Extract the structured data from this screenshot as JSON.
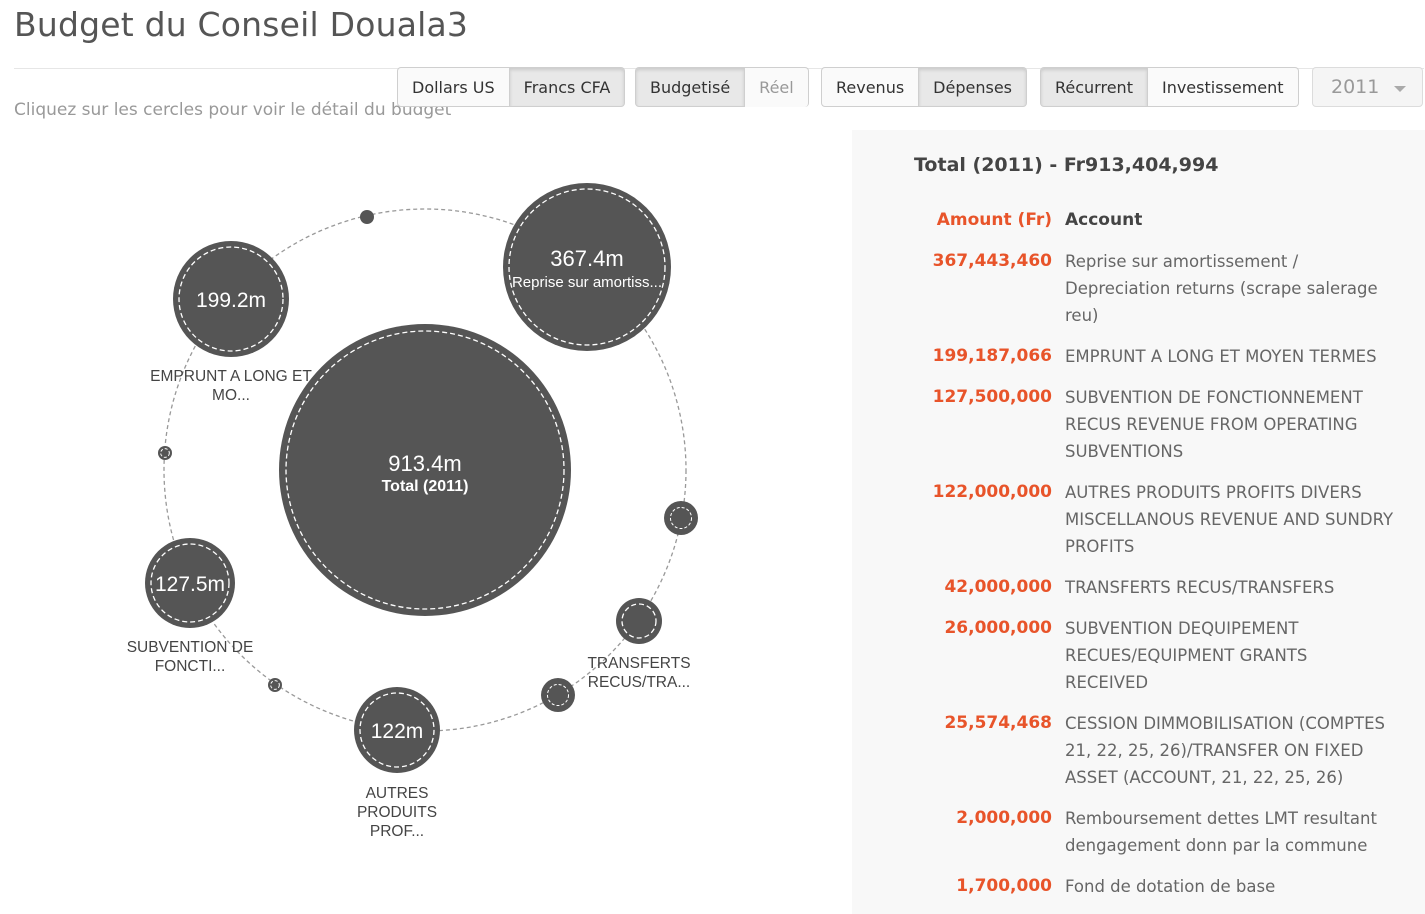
{
  "page": {
    "title": "Budget du Conseil Douala3",
    "subtitle": "Cliquez sur les cercles pour voir le détail du budget"
  },
  "toolbar": {
    "currency": {
      "usd": "Dollars US",
      "cfa": "Francs CFA"
    },
    "mode": {
      "budgeted": "Budgetisé",
      "actual": "Réel"
    },
    "flow": {
      "revenue": "Revenus",
      "expenses": "Dépenses"
    },
    "type": {
      "recurrent": "Récurrent",
      "investment": "Investissement"
    },
    "year": "2011"
  },
  "bubbles": {
    "total": {
      "value": "913.4m",
      "label": "Total (2011)"
    },
    "items": [
      {
        "value": "367.4m",
        "inner_label": "Reprise sur amortiss...",
        "outer_label": []
      },
      {
        "value": "199.2m",
        "inner_label": "",
        "outer_label": [
          "EMPRUNT A LONG ET",
          "MO..."
        ]
      },
      {
        "value": "",
        "inner_label": "",
        "outer_label": []
      },
      {
        "value": "127.5m",
        "inner_label": "",
        "outer_label": [
          "SUBVENTION DE",
          "FONCTI..."
        ]
      },
      {
        "value": "",
        "inner_label": "",
        "outer_label": []
      },
      {
        "value": "122m",
        "inner_label": "",
        "outer_label": [
          "AUTRES",
          "PRODUITS",
          "PROF..."
        ]
      },
      {
        "value": "",
        "inner_label": "",
        "outer_label": []
      },
      {
        "value": "",
        "inner_label": "",
        "outer_label": [
          "TRANSFERTS",
          "RECUS/TRA..."
        ]
      },
      {
        "value": "",
        "inner_label": "",
        "outer_label": []
      },
      {
        "value": "",
        "inner_label": "",
        "outer_label": []
      }
    ]
  },
  "detail": {
    "title": "Total (2011) - Fr913,404,994",
    "headers": {
      "amount": "Amount (Fr)",
      "account": "Account"
    },
    "rows": [
      {
        "amount": "367,443,460",
        "account": "Reprise sur amortissement / Depreciation returns (scrape salerage reu)"
      },
      {
        "amount": "199,187,066",
        "account": "EMPRUNT A LONG ET MOYEN TERMES"
      },
      {
        "amount": "127,500,000",
        "account": "SUBVENTION DE FONCTIONNEMENT RECUS REVENUE FROM OPERATING SUBVENTIONS"
      },
      {
        "amount": "122,000,000",
        "account": "AUTRES PRODUITS PROFITS DIVERS MISCELLANOUS REVENUE AND SUNDRY PROFITS"
      },
      {
        "amount": "42,000,000",
        "account": "TRANSFERTS RECUS/TRANSFERS"
      },
      {
        "amount": "26,000,000",
        "account": "SUBVENTION DEQUIPEMENT RECUES/EQUIPMENT GRANTS RECEIVED"
      },
      {
        "amount": "25,574,468",
        "account": "CESSION DIMMOBILISATION (COMPTES 21, 22, 25, 26)/TRANSFER ON FIXED ASSET (ACCOUNT, 21, 22, 25, 26)"
      },
      {
        "amount": "2,000,000",
        "account": "Remboursement dettes LMT resultant dengagement donn par la commune"
      },
      {
        "amount": "1,700,000",
        "account": "Fond de dotation de base"
      }
    ]
  },
  "colors": {
    "bubble": "#555555",
    "accent": "#e8542a",
    "panel": "#f8f8f8"
  }
}
